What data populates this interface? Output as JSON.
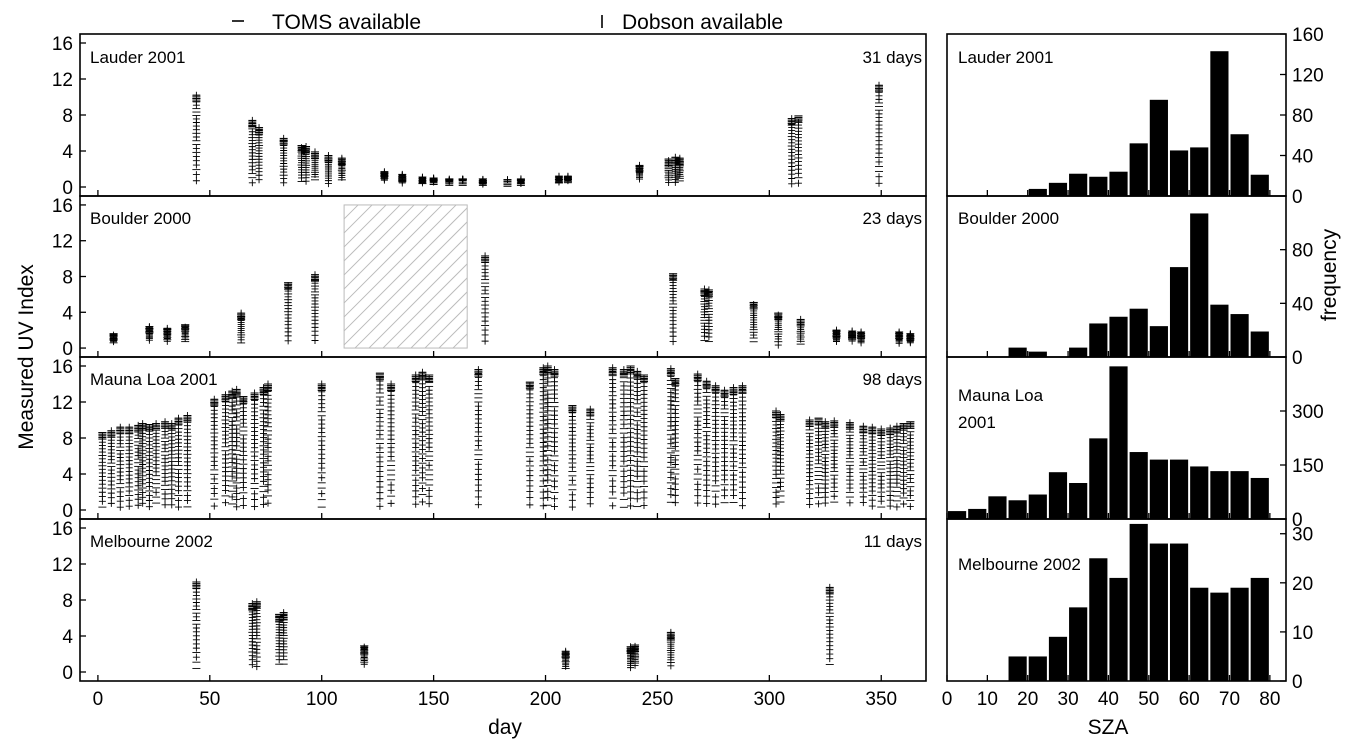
{
  "legend": {
    "toms_label": "TOMS available",
    "dobson_label": "Dobson available"
  },
  "axes": {
    "left_ylabel": "Measured UV Index",
    "left_xlabel": "day",
    "right_ylabel": "frequency",
    "right_xlabel": "SZA"
  },
  "chart_data": [
    {
      "type": "scatter",
      "panel": "Lauder 2001",
      "title": "Lauder 2001",
      "annotation": "31 days",
      "xlabel": "day",
      "ylabel": "Measured UV Index",
      "xlim": [
        -8,
        370
      ],
      "ylim": [
        -1,
        17
      ],
      "xticks": [
        0,
        50,
        100,
        150,
        200,
        250,
        300,
        350
      ],
      "yticks": [
        0,
        4,
        8,
        12,
        16
      ],
      "days": [
        {
          "day": 44,
          "max": 10.2
        },
        {
          "day": 69,
          "max": 7.4
        },
        {
          "day": 72,
          "max": 6.6
        },
        {
          "day": 83,
          "max": 5.4
        },
        {
          "day": 91,
          "max": 4.6
        },
        {
          "day": 93,
          "max": 4.5
        },
        {
          "day": 97,
          "max": 3.9
        },
        {
          "day": 103,
          "max": 3.5
        },
        {
          "day": 109,
          "max": 3.2
        },
        {
          "day": 128,
          "max": 1.7
        },
        {
          "day": 136,
          "max": 1.4
        },
        {
          "day": 145,
          "max": 1.1
        },
        {
          "day": 150,
          "max": 1.0
        },
        {
          "day": 157,
          "max": 0.9
        },
        {
          "day": 163,
          "max": 0.9
        },
        {
          "day": 172,
          "max": 0.9
        },
        {
          "day": 183,
          "max": 0.8
        },
        {
          "day": 189,
          "max": 0.9
        },
        {
          "day": 206,
          "max": 1.2
        },
        {
          "day": 210,
          "max": 1.2
        },
        {
          "day": 242,
          "max": 2.4
        },
        {
          "day": 255,
          "max": 3.1
        },
        {
          "day": 258,
          "max": 3.3
        },
        {
          "day": 260,
          "max": 3.2
        },
        {
          "day": 310,
          "max": 7.6
        },
        {
          "day": 313,
          "max": 7.9
        },
        {
          "day": 349,
          "max": 11.3
        }
      ]
    },
    {
      "type": "scatter",
      "panel": "Boulder 2000",
      "title": "Boulder 2000",
      "annotation": "23 days",
      "xlabel": "day",
      "ylabel": "Measured UV Index",
      "xlim": [
        -8,
        370
      ],
      "ylim": [
        -1,
        17
      ],
      "xticks": [
        0,
        50,
        100,
        150,
        200,
        250,
        300,
        350
      ],
      "yticks": [
        0,
        4,
        8,
        12,
        16
      ],
      "no_data_range": [
        110,
        165
      ],
      "days": [
        {
          "day": 7,
          "max": 1.6
        },
        {
          "day": 23,
          "max": 2.4
        },
        {
          "day": 31,
          "max": 2.2
        },
        {
          "day": 39,
          "max": 2.6
        },
        {
          "day": 64,
          "max": 3.9
        },
        {
          "day": 85,
          "max": 7.3
        },
        {
          "day": 97,
          "max": 8.2
        },
        {
          "day": 173,
          "max": 10.3
        },
        {
          "day": 257,
          "max": 8.3
        },
        {
          "day": 271,
          "max": 6.6
        },
        {
          "day": 273,
          "max": 6.5
        },
        {
          "day": 293,
          "max": 5.1
        },
        {
          "day": 304,
          "max": 3.9
        },
        {
          "day": 314,
          "max": 3.2
        },
        {
          "day": 330,
          "max": 2.0
        },
        {
          "day": 337,
          "max": 1.9
        },
        {
          "day": 341,
          "max": 1.8
        },
        {
          "day": 358,
          "max": 1.8
        },
        {
          "day": 363,
          "max": 1.6
        }
      ]
    },
    {
      "type": "scatter",
      "panel": "Mauna Loa 2001",
      "title": "Mauna Loa 2001",
      "annotation": "98 days",
      "xlabel": "day",
      "ylabel": "Measured UV Index",
      "xlim": [
        -8,
        370
      ],
      "ylim": [
        -1,
        17
      ],
      "xticks": [
        0,
        50,
        100,
        150,
        200,
        250,
        300,
        350
      ],
      "yticks": [
        0,
        4,
        8,
        12,
        16
      ],
      "days": [
        {
          "day": 2,
          "max": 8.6
        },
        {
          "day": 6,
          "max": 8.8
        },
        {
          "day": 10,
          "max": 9.2
        },
        {
          "day": 14,
          "max": 9.2
        },
        {
          "day": 18,
          "max": 9.4
        },
        {
          "day": 20,
          "max": 9.6
        },
        {
          "day": 23,
          "max": 9.5
        },
        {
          "day": 26,
          "max": 9.6
        },
        {
          "day": 30,
          "max": 9.8
        },
        {
          "day": 33,
          "max": 9.6
        },
        {
          "day": 36,
          "max": 10.2
        },
        {
          "day": 40,
          "max": 10.5
        },
        {
          "day": 52,
          "max": 12.3
        },
        {
          "day": 57,
          "max": 12.8
        },
        {
          "day": 60,
          "max": 13.2
        },
        {
          "day": 62,
          "max": 13.4
        },
        {
          "day": 65,
          "max": 12.6
        },
        {
          "day": 70,
          "max": 13.0
        },
        {
          "day": 74,
          "max": 13.6
        },
        {
          "day": 76,
          "max": 14.0
        },
        {
          "day": 100,
          "max": 14.0
        },
        {
          "day": 126,
          "max": 15.2
        },
        {
          "day": 131,
          "max": 14.0
        },
        {
          "day": 142,
          "max": 15.0
        },
        {
          "day": 145,
          "max": 15.3
        },
        {
          "day": 148,
          "max": 15.0
        },
        {
          "day": 170,
          "max": 15.6
        },
        {
          "day": 193,
          "max": 14.2
        },
        {
          "day": 199,
          "max": 15.8
        },
        {
          "day": 201,
          "max": 16.0
        },
        {
          "day": 204,
          "max": 15.6
        },
        {
          "day": 212,
          "max": 11.6
        },
        {
          "day": 220,
          "max": 11.2
        },
        {
          "day": 230,
          "max": 15.8
        },
        {
          "day": 235,
          "max": 15.6
        },
        {
          "day": 238,
          "max": 16.0
        },
        {
          "day": 241,
          "max": 15.4
        },
        {
          "day": 244,
          "max": 15.0
        },
        {
          "day": 256,
          "max": 15.7
        },
        {
          "day": 258,
          "max": 14.6
        },
        {
          "day": 268,
          "max": 15.1
        },
        {
          "day": 272,
          "max": 14.3
        },
        {
          "day": 276,
          "max": 13.8
        },
        {
          "day": 280,
          "max": 13.3
        },
        {
          "day": 284,
          "max": 13.6
        },
        {
          "day": 288,
          "max": 13.8
        },
        {
          "day": 303,
          "max": 11.0
        },
        {
          "day": 305,
          "max": 10.6
        },
        {
          "day": 318,
          "max": 10.0
        },
        {
          "day": 322,
          "max": 10.2
        },
        {
          "day": 325,
          "max": 9.8
        },
        {
          "day": 329,
          "max": 9.9
        },
        {
          "day": 336,
          "max": 9.7
        },
        {
          "day": 342,
          "max": 9.3
        },
        {
          "day": 346,
          "max": 9.2
        },
        {
          "day": 350,
          "max": 9.0
        },
        {
          "day": 354,
          "max": 9.1
        },
        {
          "day": 357,
          "max": 9.3
        },
        {
          "day": 360,
          "max": 9.6
        },
        {
          "day": 363,
          "max": 9.8
        }
      ]
    },
    {
      "type": "scatter",
      "panel": "Melbourne 2002",
      "title": "Melbourne 2002",
      "annotation": "11 days",
      "xlabel": "day",
      "ylabel": "Measured UV Index",
      "xlim": [
        -8,
        370
      ],
      "ylim": [
        -1,
        17
      ],
      "xticks": [
        0,
        50,
        100,
        150,
        200,
        250,
        300,
        350
      ],
      "yticks": [
        0,
        4,
        8,
        12,
        16
      ],
      "days": [
        {
          "day": 44,
          "max": 10.0
        },
        {
          "day": 69,
          "max": 7.6
        },
        {
          "day": 71,
          "max": 7.8
        },
        {
          "day": 81,
          "max": 6.4
        },
        {
          "day": 83,
          "max": 6.6
        },
        {
          "day": 119,
          "max": 2.9
        },
        {
          "day": 209,
          "max": 2.3
        },
        {
          "day": 238,
          "max": 2.8
        },
        {
          "day": 240,
          "max": 3.0
        },
        {
          "day": 256,
          "max": 4.4
        },
        {
          "day": 327,
          "max": 9.4
        }
      ]
    },
    {
      "type": "bar",
      "panel": "Lauder 2001",
      "title": "Lauder 2001",
      "xlabel": "SZA",
      "ylabel": "frequency",
      "xlim": [
        0,
        84
      ],
      "ylim": [
        0,
        160
      ],
      "xticks": [
        0,
        10,
        20,
        30,
        40,
        50,
        60,
        70,
        80
      ],
      "yticks": [
        0,
        40,
        80,
        120,
        160
      ],
      "bin_width": 5,
      "x": [
        17.5,
        22.5,
        27.5,
        32.5,
        37.5,
        42.5,
        47.5,
        52.5,
        57.5,
        62.5,
        67.5,
        72.5,
        77.5
      ],
      "values": [
        0,
        7,
        13,
        22,
        19,
        24,
        52,
        95,
        45,
        48,
        143,
        61,
        21
      ]
    },
    {
      "type": "bar",
      "panel": "Boulder 2000",
      "title": "Boulder 2000",
      "xlabel": "SZA",
      "ylabel": "frequency",
      "xlim": [
        0,
        84
      ],
      "ylim": [
        0,
        120
      ],
      "xticks": [
        0,
        10,
        20,
        30,
        40,
        50,
        60,
        70,
        80
      ],
      "yticks": [
        0,
        40,
        80
      ],
      "bin_width": 5,
      "x": [
        17.5,
        22.5,
        27.5,
        32.5,
        37.5,
        42.5,
        47.5,
        52.5,
        57.5,
        62.5,
        67.5,
        72.5,
        77.5
      ],
      "values": [
        7,
        4,
        0,
        7,
        25,
        30,
        36,
        23,
        67,
        107,
        39,
        32,
        19
      ]
    },
    {
      "type": "bar",
      "panel": "Mauna Loa 2001",
      "title": "Mauna Loa",
      "title_line2": "2001",
      "xlabel": "SZA",
      "ylabel": "frequency",
      "xlim": [
        0,
        84
      ],
      "ylim": [
        0,
        450
      ],
      "xticks": [
        0,
        10,
        20,
        30,
        40,
        50,
        60,
        70,
        80
      ],
      "yticks": [
        0,
        150,
        300
      ],
      "bin_width": 5,
      "x": [
        2.5,
        7.5,
        12.5,
        17.5,
        22.5,
        27.5,
        32.5,
        37.5,
        42.5,
        47.5,
        52.5,
        57.5,
        62.5,
        67.5,
        72.5,
        77.5
      ],
      "values": [
        22,
        28,
        63,
        52,
        68,
        130,
        100,
        224,
        424,
        186,
        165,
        165,
        146,
        133,
        133,
        114
      ]
    },
    {
      "type": "bar",
      "panel": "Melbourne 2002",
      "title": "Melbourne 2002",
      "xlabel": "SZA",
      "ylabel": "frequency",
      "xlim": [
        0,
        84
      ],
      "ylim": [
        0,
        33
      ],
      "xticks": [
        0,
        10,
        20,
        30,
        40,
        50,
        60,
        70,
        80
      ],
      "yticks": [
        0,
        10,
        20,
        30
      ],
      "bin_width": 5,
      "x": [
        17.5,
        22.5,
        27.5,
        32.5,
        37.5,
        42.5,
        47.5,
        52.5,
        57.5,
        62.5,
        67.5,
        72.5,
        77.5
      ],
      "values": [
        5,
        5,
        9,
        15,
        25,
        21,
        32,
        28,
        28,
        19,
        18,
        19,
        21
      ]
    }
  ]
}
